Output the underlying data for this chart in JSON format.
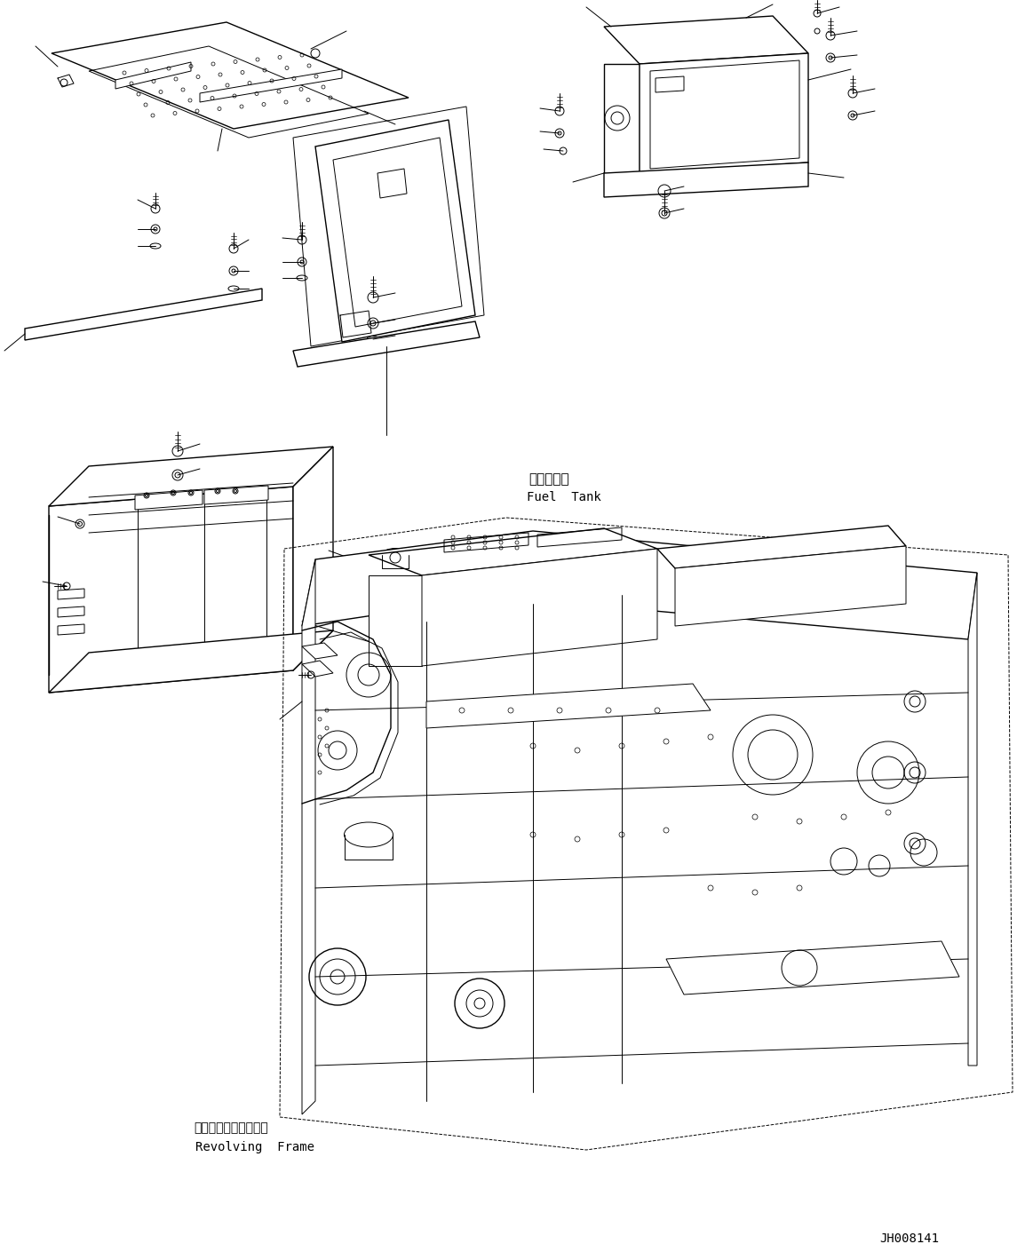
{
  "background_color": "#ffffff",
  "line_color": "#000000",
  "text_color": "#000000",
  "part_number": "JH008141",
  "label_fuel_tank_jp": "燃料タンク",
  "label_fuel_tank_en": "Fuel  Tank",
  "label_revolving_jp": "レボルビングフレーム",
  "label_revolving_en": "Revolving  Frame",
  "fig_width": 11.63,
  "fig_height": 14.19,
  "dpi": 100
}
